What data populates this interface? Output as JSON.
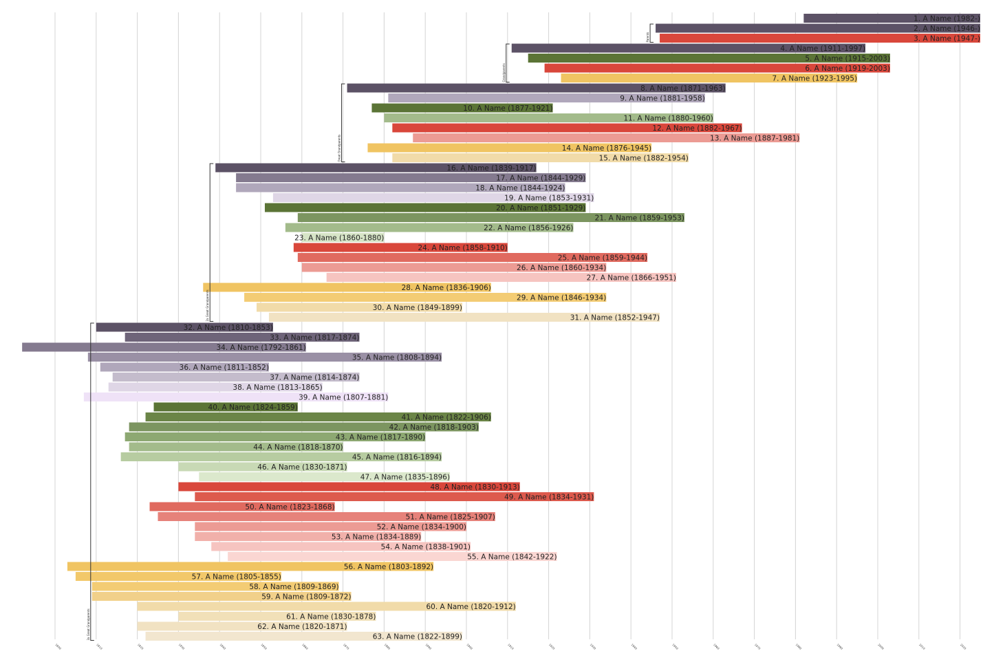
{
  "chart_data": {
    "type": "timeline",
    "x_range": [
      1785,
      2035
    ],
    "x_ticks": [
      1800,
      1810,
      1820,
      1830,
      1840,
      1850,
      1860,
      1870,
      1880,
      1890,
      1900,
      1910,
      1920,
      1930,
      1940,
      1950,
      1960,
      1970,
      1980,
      1990,
      2000,
      2010,
      2020
    ],
    "grid": true,
    "groups": [
      {
        "label": "Parents",
        "first": 2,
        "last": 3
      },
      {
        "label": "Grandparents",
        "first": 4,
        "last": 7
      },
      {
        "label": "Great Grandparents",
        "first": 8,
        "last": 15
      },
      {
        "label": "2x Great Grandparents",
        "first": 16,
        "last": 31
      },
      {
        "label": "3x Great Grandparents",
        "first": 32,
        "last": 63
      }
    ],
    "bars": [
      {
        "label": "1. A Name (1982-)",
        "start": 1982,
        "end": 2035,
        "color": "#5c5266"
      },
      {
        "label": "2. A Name (1946-)",
        "start": 1946,
        "end": 2035,
        "color": "#5c5266"
      },
      {
        "label": "3. A Name (1947-)",
        "start": 1947,
        "end": 2035,
        "color": "#d9473b"
      },
      {
        "label": "4. A Name (1911-1997)",
        "start": 1911,
        "end": 1997,
        "color": "#5c5266"
      },
      {
        "label": "5. A Name (1915-2003)",
        "start": 1915,
        "end": 2003,
        "color": "#5b7436"
      },
      {
        "label": "6. A Name (1919-2003)",
        "start": 1919,
        "end": 2003,
        "color": "#d9473b"
      },
      {
        "label": "7. A Name (1923-1995)",
        "start": 1923,
        "end": 1995,
        "color": "#f0c462"
      },
      {
        "label": "8. A Name (1871-1963)",
        "start": 1871,
        "end": 1963,
        "color": "#5c5266"
      },
      {
        "label": "9. A Name (1881-1958)",
        "start": 1881,
        "end": 1958,
        "color": "#b0a7bb"
      },
      {
        "label": "10. A Name (1877-1921)",
        "start": 1877,
        "end": 1921,
        "color": "#5b7436"
      },
      {
        "label": "11. A Name (1880-1960)",
        "start": 1880,
        "end": 1960,
        "color": "#a3bb8b"
      },
      {
        "label": "12. A Name (1882-1967)",
        "start": 1882,
        "end": 1967,
        "color": "#d9473b"
      },
      {
        "label": "13. A Name (1887-1981)",
        "start": 1887,
        "end": 1981,
        "color": "#ec9b94"
      },
      {
        "label": "14. A Name (1876-1945)",
        "start": 1876,
        "end": 1945,
        "color": "#f0c462"
      },
      {
        "label": "15. A Name (1882-1954)",
        "start": 1882,
        "end": 1954,
        "color": "#f1dba9"
      },
      {
        "label": "16. A Name (1839-1917)",
        "start": 1839,
        "end": 1917,
        "color": "#5c5266"
      },
      {
        "label": "17. A Name (1844-1929)",
        "start": 1844,
        "end": 1929,
        "color": "#847a8f"
      },
      {
        "label": "18. A Name (1844-1924)",
        "start": 1844,
        "end": 1924,
        "color": "#b0a7bb"
      },
      {
        "label": "19. A Name (1853-1931)",
        "start": 1853,
        "end": 1931,
        "color": "#dfd6e6"
      },
      {
        "label": "20. A Name (1851-1929)",
        "start": 1851,
        "end": 1929,
        "color": "#5b7436"
      },
      {
        "label": "21. A Name (1859-1953)",
        "start": 1859,
        "end": 1953,
        "color": "#7c9560"
      },
      {
        "label": "22. A Name (1856-1926)",
        "start": 1856,
        "end": 1926,
        "color": "#a3bb8b"
      },
      {
        "label": "23. A Name (1860-1880)",
        "start": 1860,
        "end": 1880,
        "color": "#d6e4c6"
      },
      {
        "label": "24. A Name (1858-1910)",
        "start": 1858,
        "end": 1910,
        "color": "#d9473b"
      },
      {
        "label": "25. A Name (1859-1944)",
        "start": 1859,
        "end": 1944,
        "color": "#e06a5f"
      },
      {
        "label": "26. A Name (1860-1934)",
        "start": 1860,
        "end": 1934,
        "color": "#ec9b94"
      },
      {
        "label": "27. A Name (1866-1951)",
        "start": 1866,
        "end": 1951,
        "color": "#f6c4c0"
      },
      {
        "label": "28. A Name (1836-1906)",
        "start": 1836,
        "end": 1906,
        "color": "#f0c462"
      },
      {
        "label": "29. A Name (1846-1934)",
        "start": 1846,
        "end": 1934,
        "color": "#f3cc74"
      },
      {
        "label": "30. A Name (1849-1899)",
        "start": 1849,
        "end": 1899,
        "color": "#f1dba9"
      },
      {
        "label": "31. A Name (1852-1947)",
        "start": 1852,
        "end": 1947,
        "color": "#f1e2c2"
      },
      {
        "label": "32. A Name (1810-1853)",
        "start": 1810,
        "end": 1853,
        "color": "#5c5266"
      },
      {
        "label": "33. A Name (1817-1874)",
        "start": 1817,
        "end": 1874,
        "color": "#6e6479"
      },
      {
        "label": "34. A Name (1792-1861)",
        "start": 1792,
        "end": 1861,
        "color": "#847a8f"
      },
      {
        "label": "35. A Name (1808-1894)",
        "start": 1808,
        "end": 1894,
        "color": "#9a90a5"
      },
      {
        "label": "36. A Name (1811-1852)",
        "start": 1811,
        "end": 1852,
        "color": "#b0a7bb"
      },
      {
        "label": "37. A Name (1814-1874)",
        "start": 1814,
        "end": 1874,
        "color": "#c4bccc"
      },
      {
        "label": "38. A Name (1813-1865)",
        "start": 1813,
        "end": 1865,
        "color": "#dfd6e6"
      },
      {
        "label": "39. A Name (1807-1881)",
        "start": 1807,
        "end": 1881,
        "color": "#efe2f7"
      },
      {
        "label": "40. A Name (1824-1859)",
        "start": 1824,
        "end": 1859,
        "color": "#5b7436"
      },
      {
        "label": "41. A Name (1822-1906)",
        "start": 1822,
        "end": 1906,
        "color": "#6b8547"
      },
      {
        "label": "42. A Name (1818-1903)",
        "start": 1818,
        "end": 1903,
        "color": "#7c9560"
      },
      {
        "label": "43. A Name (1817-1890)",
        "start": 1817,
        "end": 1890,
        "color": "#8da872"
      },
      {
        "label": "44. A Name (1818-1870)",
        "start": 1818,
        "end": 1870,
        "color": "#a3bb8b"
      },
      {
        "label": "45. A Name (1816-1894)",
        "start": 1816,
        "end": 1894,
        "color": "#b7cca1"
      },
      {
        "label": "46. A Name (1830-1871)",
        "start": 1830,
        "end": 1871,
        "color": "#c8d9b5"
      },
      {
        "label": "47. A Name (1835-1896)",
        "start": 1835,
        "end": 1896,
        "color": "#dbe8cc"
      },
      {
        "label": "48. A Name (1830-1913)",
        "start": 1830,
        "end": 1913,
        "color": "#d9473b"
      },
      {
        "label": "49. A Name (1834-1931)",
        "start": 1834,
        "end": 1931,
        "color": "#dd5a4d"
      },
      {
        "label": "50. A Name (1823-1868)",
        "start": 1823,
        "end": 1868,
        "color": "#e06a5f"
      },
      {
        "label": "51. A Name (1825-1907)",
        "start": 1825,
        "end": 1907,
        "color": "#e6827a"
      },
      {
        "label": "52. A Name (1834-1900)",
        "start": 1834,
        "end": 1900,
        "color": "#ec9b94"
      },
      {
        "label": "53. A Name (1834-1889)",
        "start": 1834,
        "end": 1889,
        "color": "#f1b0aa"
      },
      {
        "label": "54. A Name (1838-1901)",
        "start": 1838,
        "end": 1901,
        "color": "#f6c4c0"
      },
      {
        "label": "55. A Name (1842-1922)",
        "start": 1842,
        "end": 1922,
        "color": "#fad6d2"
      },
      {
        "label": "56. A Name (1803-1892)",
        "start": 1803,
        "end": 1892,
        "color": "#f0c462"
      },
      {
        "label": "57. A Name (1805-1855)",
        "start": 1805,
        "end": 1855,
        "color": "#f2c86a"
      },
      {
        "label": "58. A Name (1809-1869)",
        "start": 1809,
        "end": 1869,
        "color": "#f3cc74"
      },
      {
        "label": "59. A Name (1809-1872)",
        "start": 1809,
        "end": 1872,
        "color": "#f1d08a"
      },
      {
        "label": "60. A Name (1820-1912)",
        "start": 1820,
        "end": 1912,
        "color": "#f1dba9"
      },
      {
        "label": "61. A Name (1830-1878)",
        "start": 1830,
        "end": 1878,
        "color": "#f1e0b8"
      },
      {
        "label": "62. A Name (1820-1871)",
        "start": 1820,
        "end": 1871,
        "color": "#f1e2c2"
      },
      {
        "label": "63. A Name (1822-1899)",
        "start": 1822,
        "end": 1899,
        "color": "#f2e6cf"
      }
    ]
  }
}
